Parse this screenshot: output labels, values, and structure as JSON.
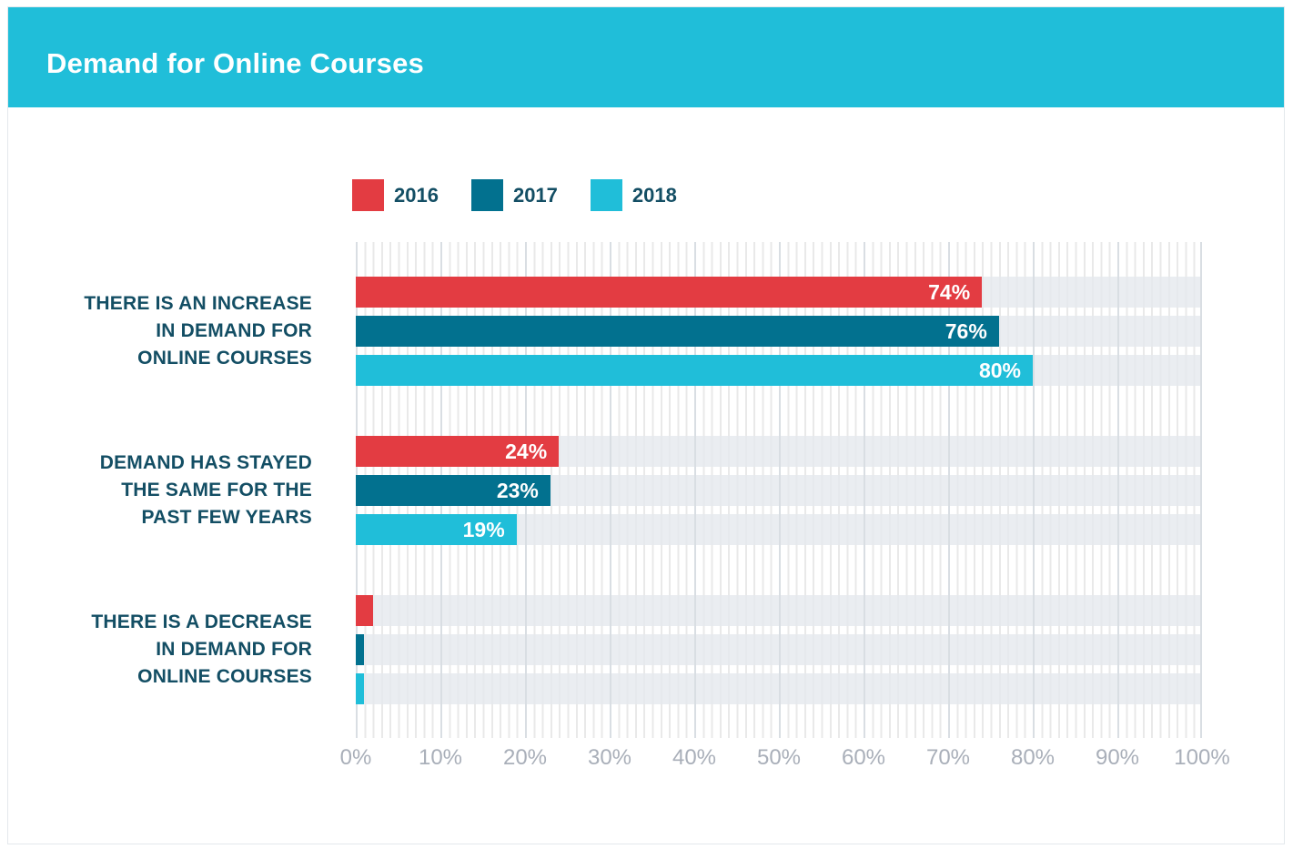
{
  "header": {
    "title": "Demand for Online Courses",
    "background_color": "#20bed9",
    "title_color": "#ffffff"
  },
  "chart_data": {
    "type": "bar",
    "orientation": "horizontal",
    "title": "Demand for Online Courses",
    "categories": [
      {
        "lines": [
          "THERE IS AN INCREASE",
          "IN DEMAND FOR",
          "ONLINE COURSES"
        ]
      },
      {
        "lines": [
          "DEMAND HAS STAYED",
          "THE SAME FOR THE",
          "PAST FEW YEARS"
        ]
      },
      {
        "lines": [
          "THERE IS A DECREASE",
          "IN DEMAND FOR",
          "ONLINE COURSES"
        ]
      }
    ],
    "series": [
      {
        "name": "2016",
        "color": "#e33c42",
        "values": [
          74,
          24,
          2
        ]
      },
      {
        "name": "2017",
        "color": "#02718f",
        "values": [
          76,
          23,
          1
        ]
      },
      {
        "name": "2018",
        "color": "#20bed9",
        "values": [
          80,
          19,
          1
        ]
      }
    ],
    "value_suffix": "%",
    "data_labels": [
      [
        "74%",
        "24%",
        ""
      ],
      [
        "76%",
        "23%",
        ""
      ],
      [
        "80%",
        "19%",
        ""
      ]
    ],
    "xlim": [
      0,
      100
    ],
    "x_ticks": [
      "0%",
      "10%",
      "20%",
      "30%",
      "40%",
      "50%",
      "60%",
      "70%",
      "80%",
      "90%",
      "100%"
    ],
    "legend_position": "top",
    "grid": {
      "minor_every_pct": 1,
      "major_every_pct": 10
    },
    "colors": {
      "category_text": "#134e64",
      "legend_text": "#134e64",
      "axis_text": "#a9afb9",
      "bar_value_text": "#ffffff",
      "row_track": "#e8ebef",
      "minor_gridline": "#e9e9e9",
      "major_gridline": "#d9dee3"
    }
  }
}
